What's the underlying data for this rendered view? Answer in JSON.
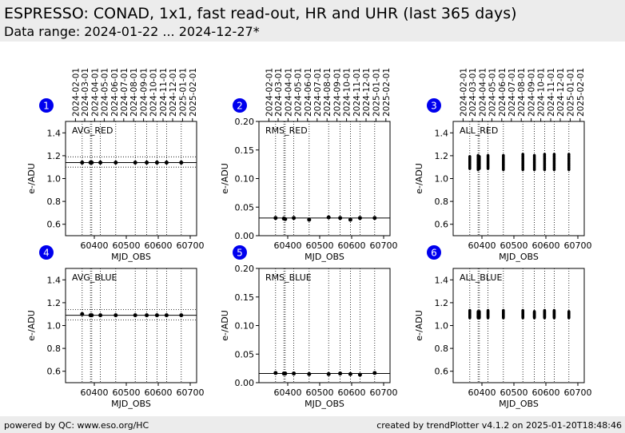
{
  "header": {
    "title": "ESPRESSO: CONAD, 1x1, fast read-out, HR and UHR (last 365 days)",
    "subtitle": "Data range: 2024-01-22 ... 2024-12-27*"
  },
  "footer": {
    "left": "powered by QC: www.eso.org/HC",
    "right": "created by trendPlotter v4.1.2 on 2025-01-20T18:48:46"
  },
  "colors": {
    "badge": "#0000ee",
    "marker": "#000000",
    "header_bg": "#ececec"
  },
  "chart_data": [
    {
      "type": "scatter",
      "badge": "1",
      "label": "AVG_RED",
      "xlabel": "MJD_OBS",
      "ylabel": "e-/ADU",
      "xlim": [
        60310,
        60720
      ],
      "ylim": [
        0.5,
        1.5
      ],
      "xticks": [
        60400,
        60500,
        60600,
        60700
      ],
      "yticks": [
        0.6,
        0.8,
        1.0,
        1.2,
        1.4
      ],
      "yticklabels": [
        "0.6",
        "0.8",
        "1.0",
        "1.2",
        "1.4"
      ],
      "date_ticks": [
        "2024-02-01",
        "2024-03-01",
        "2024-04-01",
        "2024-05-01",
        "2024-06-01",
        "2024-07-01",
        "2024-08-01",
        "2024-09-01",
        "2024-10-01",
        "2024-11-01",
        "2024-12-01",
        "2025-01-01",
        "2025-02-01"
      ],
      "date_ticks_mjd": [
        60341,
        60370,
        60401,
        60431,
        60462,
        60492,
        60523,
        60554,
        60584,
        60615,
        60645,
        60676,
        60707
      ],
      "ref_line": 1.14,
      "ref_band": [
        1.1,
        1.19
      ],
      "x": [
        60362,
        60388,
        60392,
        60419,
        60467,
        60528,
        60564,
        60596,
        60626,
        60672
      ],
      "y": [
        1.14,
        1.14,
        1.14,
        1.14,
        1.14,
        1.14,
        1.14,
        1.14,
        1.14,
        1.14
      ]
    },
    {
      "type": "scatter",
      "badge": "2",
      "label": "RMS_RED",
      "xlabel": "MJD_OBS",
      "ylabel": "e-/ADU",
      "xlim": [
        60310,
        60720
      ],
      "ylim": [
        0.0,
        0.2
      ],
      "xticks": [
        60400,
        60500,
        60600,
        60700
      ],
      "yticks": [
        0.0,
        0.05,
        0.1,
        0.15,
        0.2
      ],
      "yticklabels": [
        "0.00",
        "0.05",
        "0.10",
        "0.15",
        "0.20"
      ],
      "date_ticks": [
        "2024-02-01",
        "2024-03-01",
        "2024-04-01",
        "2024-05-01",
        "2024-06-01",
        "2024-07-01",
        "2024-08-01",
        "2024-09-01",
        "2024-10-01",
        "2024-11-01",
        "2024-12-01",
        "2025-01-01",
        "2025-02-01"
      ],
      "date_ticks_mjd": [
        60341,
        60370,
        60401,
        60431,
        60462,
        60492,
        60523,
        60554,
        60584,
        60615,
        60645,
        60676,
        60707
      ],
      "ref_line": 0.031,
      "x": [
        60362,
        60388,
        60392,
        60419,
        60467,
        60528,
        60564,
        60596,
        60626,
        60672
      ],
      "y": [
        0.031,
        0.03,
        0.029,
        0.031,
        0.028,
        0.032,
        0.031,
        0.028,
        0.031,
        0.031
      ]
    },
    {
      "type": "scatter",
      "badge": "3",
      "label": "ALL_RED",
      "xlabel": "MJD_OBS",
      "ylabel": "e-/ADU",
      "xlim": [
        60310,
        60720
      ],
      "ylim": [
        0.5,
        1.5
      ],
      "xticks": [
        60400,
        60500,
        60600,
        60700
      ],
      "yticks": [
        0.6,
        0.8,
        1.0,
        1.2,
        1.4
      ],
      "yticklabels": [
        "0.6",
        "0.8",
        "1.0",
        "1.2",
        "1.4"
      ],
      "date_ticks": [
        "2024-02-01",
        "2024-03-01",
        "2024-04-01",
        "2024-05-01",
        "2024-06-01",
        "2024-07-01",
        "2024-08-01",
        "2024-09-01",
        "2024-10-01",
        "2024-11-01",
        "2024-12-01",
        "2025-01-01",
        "2025-02-01"
      ],
      "date_ticks_mjd": [
        60341,
        60370,
        60401,
        60431,
        60462,
        60492,
        60523,
        60554,
        60584,
        60615,
        60645,
        60676,
        60707
      ],
      "x": [
        60362,
        60388,
        60392,
        60419,
        60467,
        60528,
        60564,
        60596,
        60626,
        60672
      ],
      "yrange": [
        [
          1.09,
          1.19
        ],
        [
          1.08,
          1.2
        ],
        [
          1.09,
          1.19
        ],
        [
          1.09,
          1.2
        ],
        [
          1.08,
          1.2
        ],
        [
          1.08,
          1.21
        ],
        [
          1.08,
          1.2
        ],
        [
          1.08,
          1.21
        ],
        [
          1.08,
          1.21
        ],
        [
          1.08,
          1.21
        ]
      ]
    },
    {
      "type": "scatter",
      "badge": "4",
      "label": "AVG_BLUE",
      "xlabel": "MJD_OBS",
      "ylabel": "e-/ADU",
      "xlim": [
        60310,
        60720
      ],
      "ylim": [
        0.5,
        1.5
      ],
      "xticks": [
        60400,
        60500,
        60600,
        60700
      ],
      "yticks": [
        0.6,
        0.8,
        1.0,
        1.2,
        1.4
      ],
      "yticklabels": [
        "0.6",
        "0.8",
        "1.0",
        "1.2",
        "1.4"
      ],
      "ref_line": 1.09,
      "ref_band": [
        1.05,
        1.14
      ],
      "x": [
        60362,
        60388,
        60392,
        60419,
        60467,
        60528,
        60564,
        60596,
        60626,
        60672
      ],
      "y": [
        1.1,
        1.09,
        1.09,
        1.09,
        1.09,
        1.09,
        1.09,
        1.09,
        1.09,
        1.09
      ]
    },
    {
      "type": "scatter",
      "badge": "5",
      "label": "RMS_BLUE",
      "xlabel": "MJD_OBS",
      "ylabel": "e-/ADU",
      "xlim": [
        60310,
        60720
      ],
      "ylim": [
        0.0,
        0.2
      ],
      "xticks": [
        60400,
        60500,
        60600,
        60700
      ],
      "yticks": [
        0.0,
        0.05,
        0.1,
        0.15,
        0.2
      ],
      "yticklabels": [
        "0.00",
        "0.05",
        "0.10",
        "0.15",
        "0.20"
      ],
      "ref_line": 0.016,
      "x": [
        60362,
        60388,
        60392,
        60419,
        60467,
        60528,
        60564,
        60596,
        60626,
        60672
      ],
      "y": [
        0.017,
        0.016,
        0.016,
        0.016,
        0.015,
        0.015,
        0.016,
        0.015,
        0.014,
        0.017
      ]
    },
    {
      "type": "scatter",
      "badge": "6",
      "label": "ALL_BLUE",
      "xlabel": "MJD_OBS",
      "ylabel": "e-/ADU",
      "xlim": [
        60310,
        60720
      ],
      "ylim": [
        0.5,
        1.5
      ],
      "xticks": [
        60400,
        60500,
        60600,
        60700
      ],
      "yticks": [
        0.6,
        0.8,
        1.0,
        1.2,
        1.4
      ],
      "yticklabels": [
        "0.6",
        "0.8",
        "1.0",
        "1.2",
        "1.4"
      ],
      "x": [
        60362,
        60388,
        60392,
        60419,
        60467,
        60528,
        60564,
        60596,
        60626,
        60672
      ],
      "yrange": [
        [
          1.07,
          1.13
        ],
        [
          1.07,
          1.12
        ],
        [
          1.07,
          1.12
        ],
        [
          1.07,
          1.13
        ],
        [
          1.07,
          1.13
        ],
        [
          1.07,
          1.13
        ],
        [
          1.07,
          1.12
        ],
        [
          1.07,
          1.13
        ],
        [
          1.07,
          1.13
        ],
        [
          1.07,
          1.12
        ]
      ]
    }
  ]
}
